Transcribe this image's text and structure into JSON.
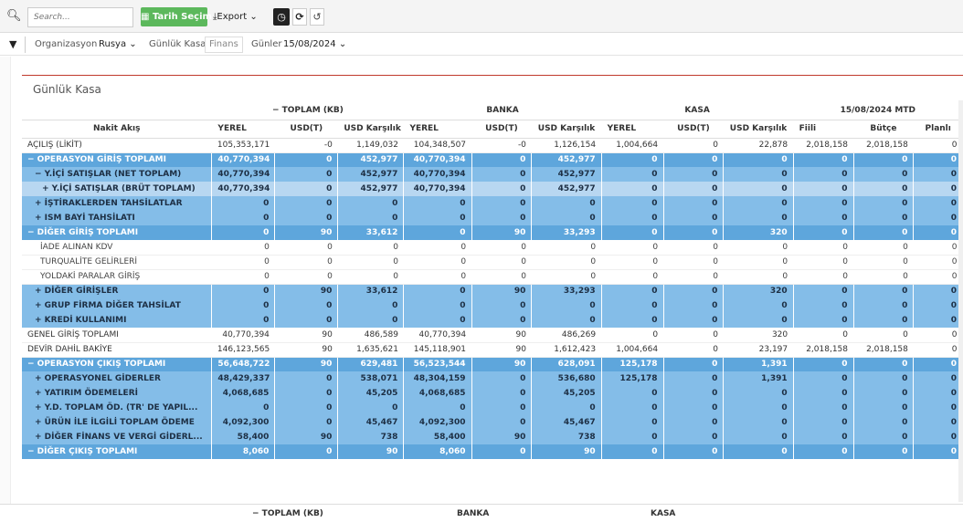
{
  "toolbar": {
    "search_placeholder": "Search...",
    "tarih_label": "Tarih Seçim",
    "export_label": "Export",
    "clock_icon": "clock-icon",
    "refresh_icon": "refresh-icon",
    "undo_icon": "undo-icon"
  },
  "filters": {
    "organizasyon_label": "Organizasyon",
    "organizasyon_value": "Rusya",
    "gunluk_kasa_label": "Günlük Kasa",
    "gunluk_kasa_value": "Finans",
    "gunler_label": "Günler",
    "gunler_value": "15/08/2024"
  },
  "panel": {
    "title": "Günlük Kasa"
  },
  "table": {
    "group_headers": [
      "− TOPLAM (KB)",
      "BANKA",
      "KASA",
      "15/08/2024 MTD"
    ],
    "columns": [
      "Nakit Akış",
      "YEREL",
      "USD(T)",
      "USD Karşılık",
      "YEREL",
      "USD(T)",
      "USD Karşılık",
      "YEREL",
      "USD(T)",
      "USD Karşılık",
      "Fiili",
      "Bütçe",
      "Planlı"
    ],
    "rows": [
      {
        "level": 0,
        "label": "AÇILIŞ (LİKİT)",
        "values": [
          "105,353,171",
          "-0",
          "1,149,032",
          "104,348,507",
          "-0",
          "1,126,154",
          "1,004,664",
          "0",
          "22,878",
          "2,018,158",
          "2,018,158",
          "0"
        ]
      },
      {
        "level": 1,
        "label": "− OPERASYON GİRİŞ TOPLAMI",
        "values": [
          "40,770,394",
          "0",
          "452,977",
          "40,770,394",
          "0",
          "452,977",
          "0",
          "0",
          "0",
          "0",
          "0",
          "0"
        ]
      },
      {
        "level": 2,
        "label": "− Y.İÇİ SATIŞLAR (NET TOPLAM)",
        "values": [
          "40,770,394",
          "0",
          "452,977",
          "40,770,394",
          "0",
          "452,977",
          "0",
          "0",
          "0",
          "0",
          "0",
          "0"
        ]
      },
      {
        "level": 3,
        "label": "+ Y.İÇİ SATIŞLAR (BRÜT TOPLAM)",
        "values": [
          "40,770,394",
          "0",
          "452,977",
          "40,770,394",
          "0",
          "452,977",
          "0",
          "0",
          "0",
          "0",
          "0",
          "0"
        ]
      },
      {
        "level": 2,
        "label": "+ İŞTİRAKLERDEN TAHSİLATLAR",
        "values": [
          "0",
          "0",
          "0",
          "0",
          "0",
          "0",
          "0",
          "0",
          "0",
          "0",
          "0",
          "0"
        ]
      },
      {
        "level": 2,
        "label": "+ ISM BAYİ TAHSİLATI",
        "values": [
          "0",
          "0",
          "0",
          "0",
          "0",
          "0",
          "0",
          "0",
          "0",
          "0",
          "0",
          "0"
        ]
      },
      {
        "level": 1,
        "label": "− DİĞER GİRİŞ TOPLAMI",
        "values": [
          "0",
          "90",
          "33,612",
          "0",
          "90",
          "33,293",
          "0",
          "0",
          "320",
          "0",
          "0",
          "0"
        ]
      },
      {
        "level": 4,
        "label": "İADE ALINAN KDV",
        "values": [
          "0",
          "0",
          "0",
          "0",
          "0",
          "0",
          "0",
          "0",
          "0",
          "0",
          "0",
          "0"
        ]
      },
      {
        "level": 4,
        "label": "TURQUALİTE GELİRLERİ",
        "values": [
          "0",
          "0",
          "0",
          "0",
          "0",
          "0",
          "0",
          "0",
          "0",
          "0",
          "0",
          "0"
        ]
      },
      {
        "level": 4,
        "label": "YOLDAKİ PARALAR GİRİŞ",
        "values": [
          "0",
          "0",
          "0",
          "0",
          "0",
          "0",
          "0",
          "0",
          "0",
          "0",
          "0",
          "0"
        ]
      },
      {
        "level": 2,
        "label": "+ DİĞER GİRİŞLER",
        "values": [
          "0",
          "90",
          "33,612",
          "0",
          "90",
          "33,293",
          "0",
          "0",
          "320",
          "0",
          "0",
          "0"
        ]
      },
      {
        "level": 2,
        "label": "+ GRUP FİRMA DİĞER TAHSİLAT",
        "values": [
          "0",
          "0",
          "0",
          "0",
          "0",
          "0",
          "0",
          "0",
          "0",
          "0",
          "0",
          "0"
        ]
      },
      {
        "level": 2,
        "label": "+ KREDİ KULLANIMI",
        "values": [
          "0",
          "0",
          "0",
          "0",
          "0",
          "0",
          "0",
          "0",
          "0",
          "0",
          "0",
          "0"
        ]
      },
      {
        "level": 0,
        "label": "GENEL GİRİŞ TOPLAMI",
        "values": [
          "40,770,394",
          "90",
          "486,589",
          "40,770,394",
          "90",
          "486,269",
          "0",
          "0",
          "320",
          "0",
          "0",
          "0"
        ]
      },
      {
        "level": 0,
        "label": "DEVİR DAHİL BAKİYE",
        "values": [
          "146,123,565",
          "90",
          "1,635,621",
          "145,118,901",
          "90",
          "1,612,423",
          "1,004,664",
          "0",
          "23,197",
          "2,018,158",
          "2,018,158",
          "0"
        ]
      },
      {
        "level": 1,
        "label": "− OPERASYON ÇIKIŞ TOPLAMI",
        "values": [
          "56,648,722",
          "90",
          "629,481",
          "56,523,544",
          "90",
          "628,091",
          "125,178",
          "0",
          "1,391",
          "0",
          "0",
          "0"
        ]
      },
      {
        "level": 2,
        "label": "+ OPERASYONEL GİDERLER",
        "values": [
          "48,429,337",
          "0",
          "538,071",
          "48,304,159",
          "0",
          "536,680",
          "125,178",
          "0",
          "1,391",
          "0",
          "0",
          "0"
        ]
      },
      {
        "level": 2,
        "label": "+ YATIRIM ÖDEMELERİ",
        "values": [
          "4,068,685",
          "0",
          "45,205",
          "4,068,685",
          "0",
          "45,205",
          "0",
          "0",
          "0",
          "0",
          "0",
          "0"
        ]
      },
      {
        "level": 2,
        "label": "+ Y.D. TOPLAM ÖD. (TR' DE YAPIL...",
        "values": [
          "0",
          "0",
          "0",
          "0",
          "0",
          "0",
          "0",
          "0",
          "0",
          "0",
          "0",
          "0"
        ]
      },
      {
        "level": 2,
        "label": "+ ÜRÜN İLE İLGİLİ TOPLAM ÖDEME",
        "values": [
          "4,092,300",
          "0",
          "45,467",
          "4,092,300",
          "0",
          "45,467",
          "0",
          "0",
          "0",
          "0",
          "0",
          "0"
        ]
      },
      {
        "level": 2,
        "label": "+ DİĞER FİNANS VE VERGİ GİDERL...",
        "values": [
          "58,400",
          "90",
          "738",
          "58,400",
          "90",
          "738",
          "0",
          "0",
          "0",
          "0",
          "0",
          "0"
        ]
      },
      {
        "level": 1,
        "label": "− DİĞER ÇIKIŞ TOPLAMI",
        "values": [
          "8,060",
          "0",
          "90",
          "8,060",
          "0",
          "90",
          "0",
          "0",
          "0",
          "0",
          "0",
          "0"
        ]
      }
    ]
  },
  "footer_headers": [
    "− TOPLAM (KB)",
    "BANKA",
    "KASA"
  ]
}
